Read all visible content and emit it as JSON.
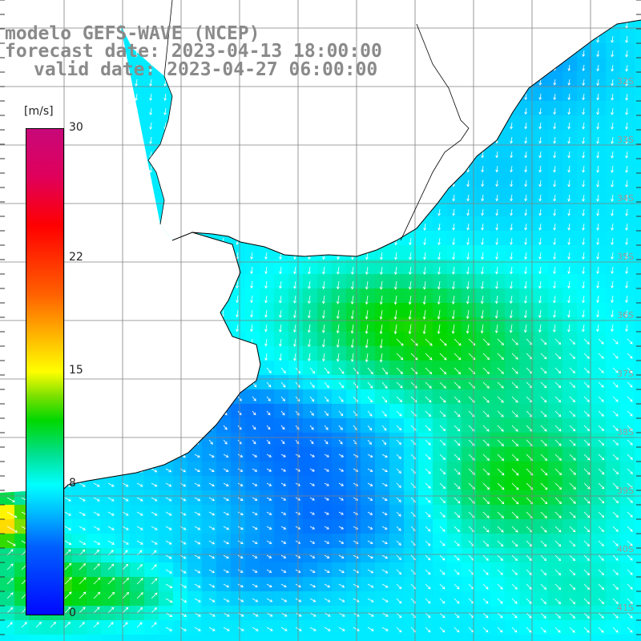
{
  "title": {
    "model": "modelo GEFS-WAVE (NCEP)",
    "forecast": "forecast date: 2023-04-13 18:00:00",
    "valid": "valid date: 2023-04-27 06:00:00"
  },
  "colorbar": {
    "unit": "[m/s]",
    "ticks": [
      {
        "value": 30,
        "label": "30"
      },
      {
        "value": 22,
        "label": "22"
      },
      {
        "value": 15,
        "label": "15"
      },
      {
        "value": 8,
        "label": "8"
      },
      {
        "value": 0,
        "label": "0"
      }
    ],
    "range": [
      0,
      30
    ]
  },
  "map": {
    "variable": "wind speed and direction",
    "lat_labels": [
      "32S",
      "33S",
      "34S",
      "35S",
      "36S",
      "37S",
      "38S",
      "39S",
      "40S",
      "41S"
    ],
    "colors": {
      "grid": "#808080",
      "coast": "#000000",
      "arrow": "#ffffff",
      "land": "#ffffff"
    }
  }
}
